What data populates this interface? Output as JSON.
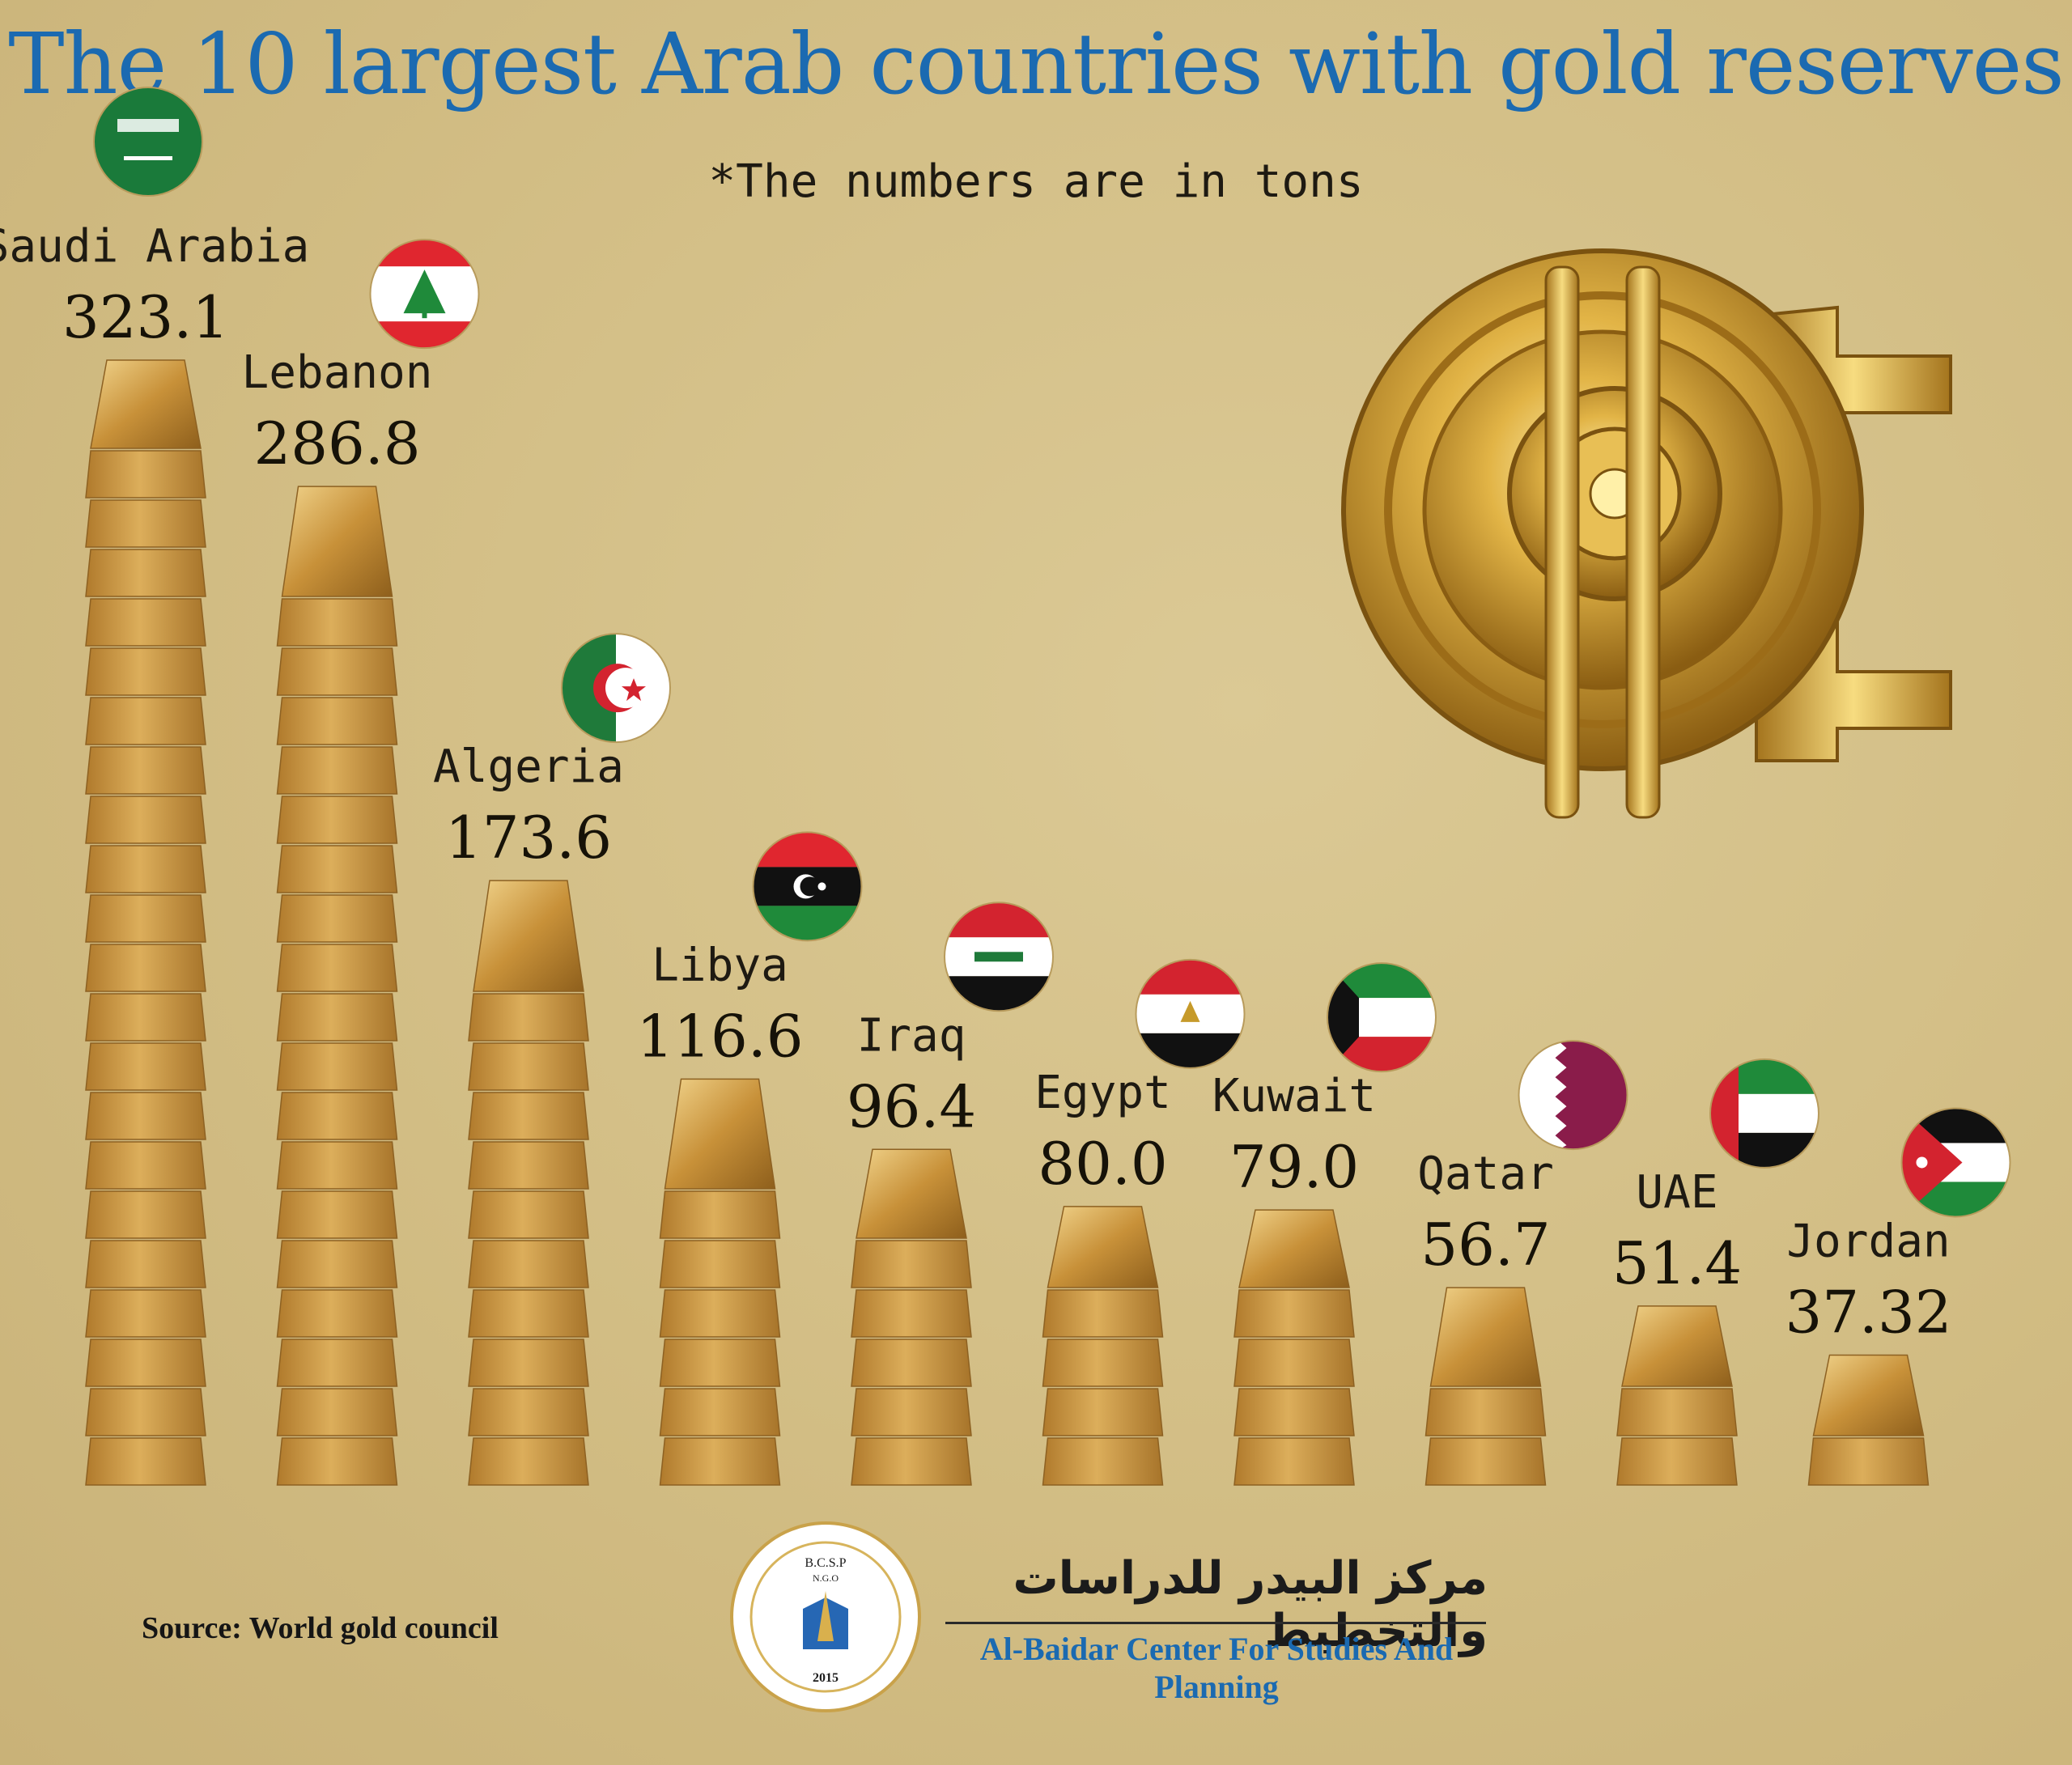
{
  "title": "The 10 largest Arab countries with gold reserves",
  "subtitle": "*The numbers are in tons",
  "source": "Source: World gold council",
  "organization": {
    "name_ar": "مركز البيدر للدراسات والتخطيط",
    "name_en": "Al-Baidar Center For Studies And Planning",
    "logo_abbr": "B.C.S.P",
    "logo_ngo": "N.G.O",
    "logo_year": "2015"
  },
  "colors": {
    "background": "#d3bf85",
    "title": "#1b6ab1",
    "gold_bar": "#c9953f"
  },
  "chart_data": {
    "type": "bar",
    "unit": "tons",
    "categories": [
      "Saudi Arabia",
      "Lebanon",
      "Algeria",
      "Libya",
      "Iraq",
      "Egypt",
      "Kuwait",
      "Qatar",
      "UAE",
      "Jordan"
    ],
    "values": [
      323.1,
      286.8,
      173.6,
      116.6,
      96.4,
      80.0,
      79.0,
      56.7,
      51.4,
      37.32
    ],
    "value_labels": [
      "323.1",
      "286.8",
      "173.6",
      "116.6",
      "96.4",
      "80.0",
      "79.0",
      "56.7",
      "51.4",
      "37.32"
    ],
    "flags": [
      "saudi-arabia-flag",
      "lebanon-flag",
      "algeria-flag",
      "libya-flag",
      "iraq-flag",
      "egypt-flag",
      "kuwait-flag",
      "qatar-flag",
      "uae-flag",
      "jordan-flag"
    ],
    "title": "The 10 largest Arab countries with gold reserves",
    "xlabel": "",
    "ylabel": "",
    "grid": false,
    "legend": "none"
  }
}
